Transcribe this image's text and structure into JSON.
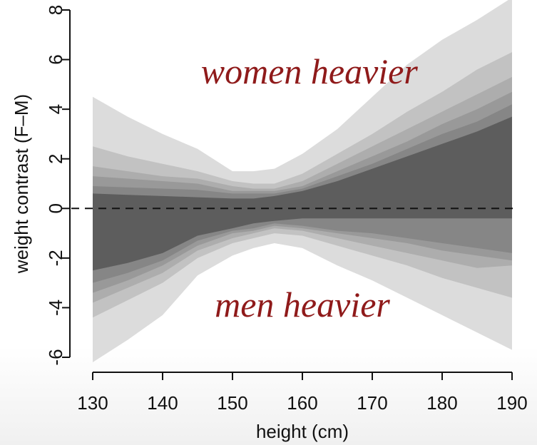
{
  "chart_data": {
    "type": "area",
    "xlabel": "height (cm)",
    "ylabel": "weight contrast (F–M)",
    "xlim": [
      130,
      190
    ],
    "ylim": [
      -6,
      8
    ],
    "x_ticks": [
      130,
      140,
      150,
      160,
      170,
      180,
      190
    ],
    "y_ticks": [
      -6,
      -4,
      -2,
      0,
      2,
      4,
      6,
      8
    ],
    "reference_line": {
      "y": 0,
      "style": "dashed"
    },
    "annotations": [
      {
        "text": "women heavier",
        "x": 161,
        "y": 5.5
      },
      {
        "text": "men heavier",
        "x": 160,
        "y": -3.9
      }
    ],
    "band_colors": [
      "#dcdcdc",
      "#c2c2c2",
      "#adadad",
      "#999999",
      "#868686",
      "#5d5d5d"
    ],
    "x": [
      130,
      135,
      140,
      145,
      150,
      153,
      156,
      160,
      165,
      170,
      175,
      180,
      185,
      190
    ],
    "bands": [
      {
        "upper": [
          4.5,
          3.7,
          3.0,
          2.4,
          1.5,
          1.5,
          1.6,
          2.2,
          3.2,
          4.5,
          5.8,
          6.8,
          7.6,
          8.5
        ],
        "lower": [
          -6.2,
          -5.3,
          -4.3,
          -2.7,
          -1.9,
          -1.6,
          -1.4,
          -1.6,
          -2.3,
          -2.9,
          -3.6,
          -4.3,
          -5.0,
          -5.7
        ]
      },
      {
        "upper": [
          2.5,
          2.1,
          1.8,
          1.5,
          1.1,
          1.0,
          1.0,
          1.4,
          2.2,
          3.0,
          3.9,
          4.7,
          5.6,
          6.3
        ],
        "lower": [
          -4.4,
          -3.7,
          -3.0,
          -2.0,
          -1.4,
          -1.2,
          -1.0,
          -1.1,
          -1.5,
          -1.9,
          -2.3,
          -2.8,
          -3.2,
          -3.6
        ]
      },
      {
        "upper": [
          1.7,
          1.5,
          1.3,
          1.2,
          0.9,
          0.8,
          0.8,
          1.1,
          1.8,
          2.5,
          3.2,
          3.9,
          4.6,
          5.3
        ],
        "lower": [
          -3.8,
          -3.2,
          -2.6,
          -1.7,
          -1.2,
          -1.0,
          -0.8,
          -0.9,
          -1.2,
          -1.5,
          -1.8,
          -2.1,
          -2.4,
          -2.3
        ]
      },
      {
        "upper": [
          1.3,
          1.2,
          1.1,
          1.0,
          0.7,
          0.7,
          0.7,
          0.9,
          1.5,
          2.1,
          2.7,
          3.4,
          4.0,
          4.7
        ],
        "lower": [
          -3.4,
          -2.9,
          -2.3,
          -1.5,
          -1.0,
          -0.9,
          -0.7,
          -0.8,
          -1.0,
          -1.2,
          -1.4,
          -1.7,
          -1.9,
          -2.1
        ]
      },
      {
        "upper": [
          0.9,
          0.85,
          0.8,
          0.75,
          0.6,
          0.6,
          0.6,
          0.8,
          1.3,
          1.8,
          2.4,
          3.0,
          3.5,
          4.2
        ],
        "lower": [
          -3.0,
          -2.6,
          -2.1,
          -1.3,
          -0.9,
          -0.8,
          -0.6,
          -0.7,
          -0.9,
          -1.0,
          -1.2,
          -1.4,
          -1.6,
          -1.8
        ]
      },
      {
        "upper": [
          0.6,
          0.55,
          0.5,
          0.45,
          0.4,
          0.4,
          0.5,
          0.7,
          1.1,
          1.6,
          2.1,
          2.6,
          3.1,
          3.7
        ],
        "lower": [
          -2.5,
          -2.2,
          -1.8,
          -1.1,
          -0.8,
          -0.6,
          -0.5,
          -0.4,
          -0.4,
          -0.4,
          -0.4,
          -0.4,
          -0.4,
          -0.4
        ]
      }
    ]
  }
}
